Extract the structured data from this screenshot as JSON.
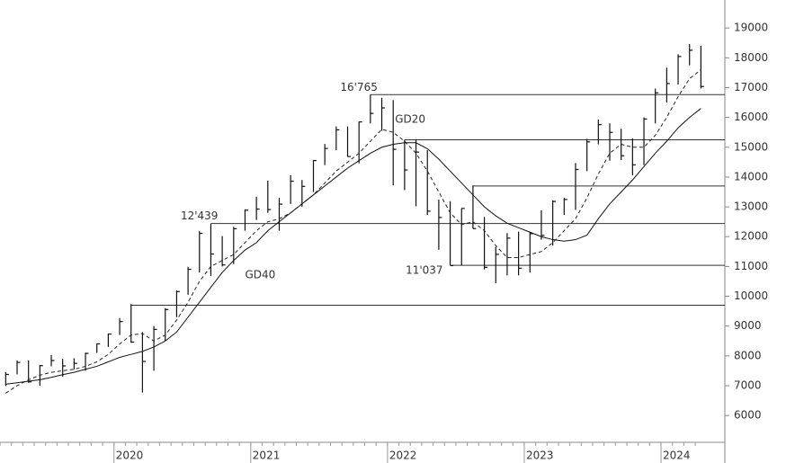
{
  "chart_data": {
    "type": "hlc",
    "categories": [
      null,
      null,
      null,
      null,
      null,
      null,
      null,
      null,
      null,
      null,
      "2020",
      null,
      null,
      null,
      null,
      null,
      null,
      null,
      null,
      null,
      null,
      null,
      "2021",
      null,
      null,
      null,
      null,
      null,
      null,
      null,
      null,
      null,
      null,
      null,
      "2022",
      null,
      null,
      null,
      null,
      null,
      null,
      null,
      null,
      null,
      null,
      null,
      "2023",
      null,
      null,
      null,
      null,
      null,
      null,
      null,
      null,
      null,
      null,
      null,
      "2024",
      null,
      null,
      null
    ],
    "ohlc": {
      "high": [
        7460,
        7850,
        7850,
        7700,
        8030,
        7900,
        7920,
        8110,
        8420,
        8750,
        9270,
        9740,
        8800,
        9000,
        9600,
        10200,
        10990,
        12190,
        12440,
        12020,
        12330,
        12920,
        13340,
        13880,
        13300,
        14060,
        13900,
        14570,
        15110,
        15700,
        15700,
        15860,
        16765,
        16660,
        16580,
        15250,
        15260,
        14900,
        13240,
        13190,
        12950,
        13720,
        12660,
        11660,
        12120,
        12170,
        12160,
        12880,
        13220,
        13300,
        14470,
        15280,
        15930,
        15800,
        15620,
        15300,
        16000,
        16970,
        17670,
        18120,
        18460,
        18400
      ],
      "low": [
        6990,
        7380,
        7100,
        7000,
        7650,
        7300,
        7550,
        7500,
        8100,
        8300,
        8700,
        8440,
        6770,
        7500,
        8500,
        9300,
        10050,
        10800,
        10680,
        11000,
        11080,
        12200,
        12560,
        12800,
        12200,
        13100,
        13000,
        13500,
        14400,
        14900,
        14680,
        14460,
        15800,
        15550,
        13720,
        13560,
        13020,
        12730,
        11560,
        11040,
        11040,
        12270,
        10900,
        10440,
        10700,
        10700,
        10800,
        11900,
        11700,
        12730,
        12900,
        14200,
        15100,
        14550,
        14570,
        14060,
        14400,
        15800,
        16500,
        17100,
        17750,
        16970
      ],
      "close": [
        7378,
        7781,
        7127,
        7672,
        7846,
        7663,
        7749,
        8084,
        8404,
        8733,
        9151,
        8462,
        7813,
        8889,
        9555,
        10157,
        10905,
        12111,
        11418,
        11052,
        12268,
        12888,
        12925,
        12909,
        13091,
        13861,
        13687,
        14554,
        14959,
        15583,
        14690,
        15850,
        16135,
        16320,
        14931,
        14237,
        14838,
        12855,
        12643,
        11028,
        12947,
        12272,
        10971,
        11406,
        11952,
        10940,
        12102,
        12043,
        13182,
        13246,
        14254,
        15180,
        15758,
        15501,
        14715,
        14409,
        15947,
        16826,
        17137,
        18044,
        18254,
        17037
      ]
    },
    "series": [
      {
        "name": "GD20",
        "color": "#222222",
        "dashed": true,
        "values": [
          6750,
          7000,
          7200,
          7350,
          7450,
          7500,
          7550,
          7650,
          7800,
          8050,
          8400,
          8700,
          8750,
          8500,
          8700,
          9200,
          9800,
          10500,
          11000,
          11200,
          11400,
          11800,
          12200,
          12500,
          12600,
          12800,
          13100,
          13400,
          13800,
          14200,
          14500,
          14800,
          15200,
          15600,
          15500,
          15200,
          14800,
          14200,
          13500,
          12800,
          12400,
          12500,
          12200,
          11700,
          11300,
          11300,
          11400,
          11500,
          11800,
          12200,
          12600,
          13300,
          14100,
          14800,
          15100,
          15000,
          15000,
          15400,
          16000,
          16700,
          17300,
          17600
        ]
      },
      {
        "name": "GD40",
        "color": "#111111",
        "dashed": false,
        "values": [
          7050,
          7100,
          7150,
          7200,
          7280,
          7370,
          7450,
          7550,
          7650,
          7800,
          7950,
          8050,
          8150,
          8300,
          8500,
          8800,
          9300,
          9800,
          10300,
          10800,
          11200,
          11550,
          11800,
          12200,
          12500,
          12800,
          13100,
          13400,
          13700,
          14000,
          14300,
          14550,
          14800,
          15000,
          15100,
          15150,
          15150,
          14950,
          14600,
          14200,
          13800,
          13400,
          13000,
          12700,
          12450,
          12300,
          12150,
          12000,
          11900,
          11850,
          11900,
          12050,
          12600,
          13100,
          13500,
          13900,
          14350,
          14800,
          15200,
          15650,
          16000,
          16300
        ]
      }
    ],
    "levels": [
      {
        "value": 16765,
        "value_label": "16'765",
        "from": 32
      },
      {
        "value": 15250,
        "from": 35
      },
      {
        "value": 13700,
        "from": 41
      },
      {
        "value": 12439,
        "value_label": "12'439",
        "from": 18
      },
      {
        "value": 11037,
        "value_label": "11'037",
        "from": 39
      },
      {
        "value": 9700,
        "from": 11
      }
    ],
    "ylim": [
      5100,
      19940
    ],
    "yticks": [
      6000,
      7000,
      8000,
      9000,
      10000,
      11000,
      12000,
      13000,
      14000,
      15000,
      16000,
      17000,
      18000,
      19000
    ]
  }
}
